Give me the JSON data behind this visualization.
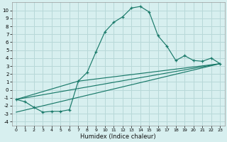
{
  "xlabel": "Humidex (Indice chaleur)",
  "background_color": "#d7efef",
  "grid_color": "#b8d8d8",
  "line_color": "#1a7a6a",
  "xlim": [
    -0.5,
    23.5
  ],
  "ylim": [
    -4.5,
    11
  ],
  "xticks": [
    0,
    1,
    2,
    3,
    4,
    5,
    6,
    7,
    8,
    9,
    10,
    11,
    12,
    13,
    14,
    15,
    16,
    17,
    18,
    19,
    20,
    21,
    22,
    23
  ],
  "yticks": [
    -4,
    -3,
    -2,
    -1,
    0,
    1,
    2,
    3,
    4,
    5,
    6,
    7,
    8,
    9,
    10
  ],
  "series_main_x": [
    0,
    1,
    2,
    3,
    4,
    5,
    6,
    7,
    8,
    9,
    10,
    11,
    12,
    13,
    14,
    15,
    16,
    17,
    18,
    19,
    20,
    21,
    22,
    23
  ],
  "series_main_y": [
    -1.2,
    -1.5,
    -2.2,
    -2.8,
    -2.7,
    -2.7,
    -2.5,
    1.1,
    2.2,
    4.8,
    7.3,
    8.5,
    9.2,
    10.3,
    10.5,
    9.8,
    6.8,
    5.5,
    3.7,
    4.3,
    3.7,
    3.6,
    4.0,
    3.3
  ],
  "line1_x": [
    0,
    23
  ],
  "line1_y": [
    -1.2,
    3.3
  ],
  "line2_x": [
    0,
    23
  ],
  "line2_y": [
    -2.8,
    3.3
  ],
  "line3_x": [
    0,
    7,
    23
  ],
  "line3_y": [
    -1.2,
    1.1,
    3.3
  ]
}
